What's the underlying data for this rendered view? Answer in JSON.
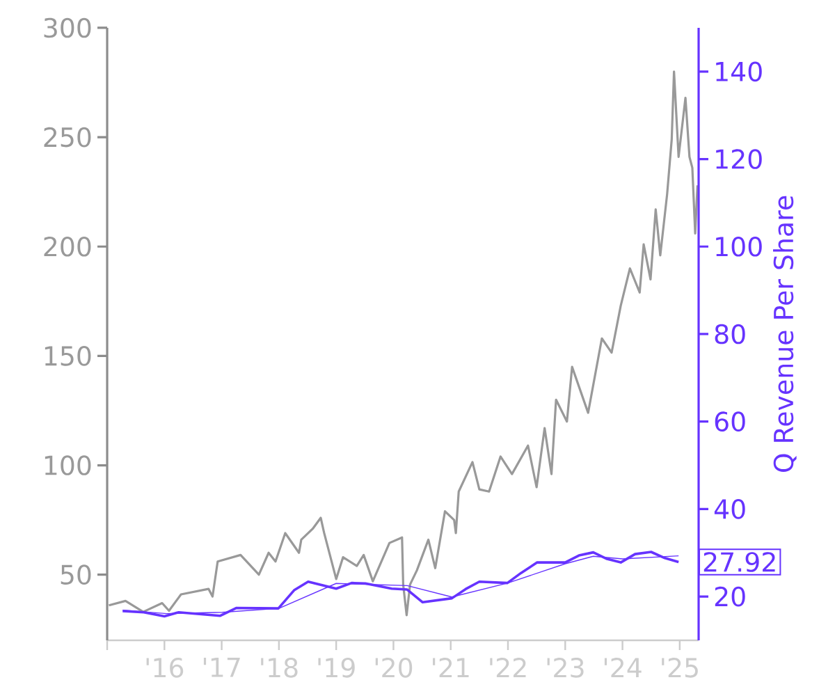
{
  "chart_data": {
    "type": "line",
    "y2label": "Q Revenue Per Share",
    "xlim": [
      2015,
      2025.33
    ],
    "xticks": [
      {
        "value": 2015,
        "label": null
      },
      {
        "value": 2016,
        "label": "'16"
      },
      {
        "value": 2017,
        "label": "'17"
      },
      {
        "value": 2018,
        "label": "'18"
      },
      {
        "value": 2019,
        "label": "'19"
      },
      {
        "value": 2020,
        "label": "'20"
      },
      {
        "value": 2021,
        "label": "'21"
      },
      {
        "value": 2022,
        "label": "'22"
      },
      {
        "value": 2023,
        "label": "'23"
      },
      {
        "value": 2024,
        "label": "'24"
      },
      {
        "value": 2025,
        "label": "'25"
      }
    ],
    "ylim": [
      20,
      300
    ],
    "yticks": [
      50,
      100,
      150,
      200,
      250,
      300
    ],
    "y2lim": [
      10,
      150
    ],
    "y2ticks": [
      20,
      40,
      60,
      80,
      100,
      120,
      140
    ],
    "annotations": [
      "27.92"
    ],
    "series": [
      {
        "color": "#999999",
        "x": [
          2015.03,
          2015.32,
          2015.63,
          2015.96,
          2016.08,
          2016.29,
          2016.77,
          2016.84,
          2016.93,
          2017.33,
          2017.65,
          2017.82,
          2017.94,
          2018.11,
          2018.35,
          2018.39,
          2018.59,
          2018.73,
          2018.79,
          2019.0,
          2019.12,
          2019.36,
          2019.48,
          2019.64,
          2019.93,
          2020.15,
          2020.17,
          2020.23,
          2020.29,
          2020.41,
          2020.61,
          2020.73,
          2020.9,
          2021.06,
          2021.09,
          2021.14,
          2021.38,
          2021.5,
          2021.67,
          2021.87,
          2022.07,
          2022.35,
          2022.5,
          2022.64,
          2022.76,
          2022.84,
          2023.03,
          2023.12,
          2023.4,
          2023.64,
          2023.81,
          2023.97,
          2024.13,
          2024.3,
          2024.37,
          2024.49,
          2024.58,
          2024.66,
          2024.78,
          2024.86,
          2024.9,
          2024.98,
          2025.1,
          2025.17,
          2025.22,
          2025.27,
          2025.31
        ],
        "values": [
          36,
          38,
          33,
          37,
          33.5,
          41,
          43.5,
          40,
          56,
          59,
          50,
          60,
          56,
          69,
          60,
          66,
          71,
          76,
          69,
          48,
          58,
          54,
          59,
          47,
          64.5,
          67,
          45.5,
          31.5,
          45.5,
          52,
          66,
          53,
          79,
          75,
          69,
          88,
          101.5,
          89,
          88,
          104,
          96,
          109,
          90,
          117,
          96,
          130,
          120,
          145,
          124,
          158,
          151.5,
          173,
          190,
          179,
          201,
          185,
          217,
          196,
          224,
          249,
          280,
          241,
          268,
          241,
          236,
          206,
          228
        ]
      },
      {
        "color": "#6633ff",
        "axis": "y2",
        "x": [
          2015.27,
          2015.64,
          2016.0,
          2016.25,
          2016.97,
          2017.26,
          2017.99,
          2018.27,
          2018.51,
          2019.0,
          2019.27,
          2019.51,
          2019.97,
          2020.24,
          2020.51,
          2021.02,
          2021.26,
          2021.5,
          2021.99,
          2022.23,
          2022.51,
          2023.0,
          2023.24,
          2023.49,
          2023.73,
          2023.97,
          2024.22,
          2024.5,
          2024.74,
          2024.98
        ],
        "values": [
          16.7,
          16.4,
          15.5,
          16.4,
          15.6,
          17.4,
          17.3,
          21.5,
          23.4,
          21.8,
          23.1,
          23.0,
          21.8,
          21.6,
          18.7,
          19.6,
          21.7,
          23.4,
          23.1,
          25.4,
          27.8,
          27.8,
          29.4,
          30.1,
          28.6,
          27.8,
          29.7,
          30.2,
          28.8,
          27.9
        ]
      },
      {
        "color": "#6633ff",
        "axis": "y2",
        "x": [
          2015.27,
          2016.04,
          2017.01,
          2018.0,
          2019.0,
          2020.24,
          2021.02,
          2022.0,
          2023.0,
          2023.49,
          2024.0,
          2024.98
        ],
        "values": [
          16.9,
          16.1,
          16.4,
          17.3,
          23.0,
          22.5,
          19.9,
          23.1,
          27.5,
          29.2,
          28.6,
          29.3
        ]
      }
    ]
  }
}
